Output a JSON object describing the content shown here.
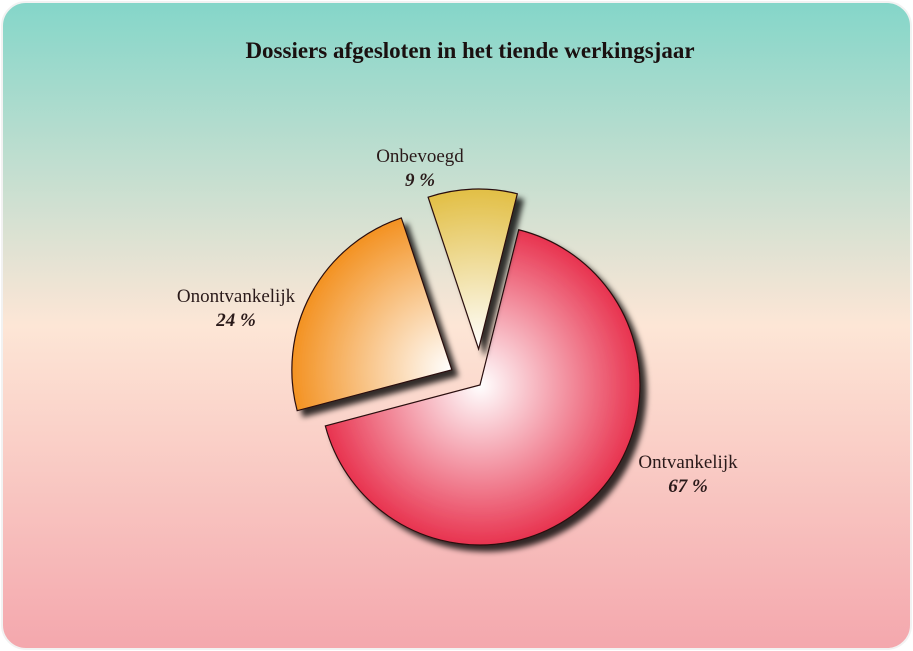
{
  "chart_data": {
    "type": "pie",
    "title": "Dossiers afgesloten in het tiende werkingsjaar",
    "categories": [
      "Ontvankelijk",
      "Onontvankelijk",
      "Onbevoegd"
    ],
    "values": [
      67,
      24,
      9
    ],
    "value_labels": [
      "67 %",
      "24 %",
      "9 %"
    ],
    "colors": [
      "#e8334f",
      "#f39222",
      "#e2bf45"
    ]
  }
}
